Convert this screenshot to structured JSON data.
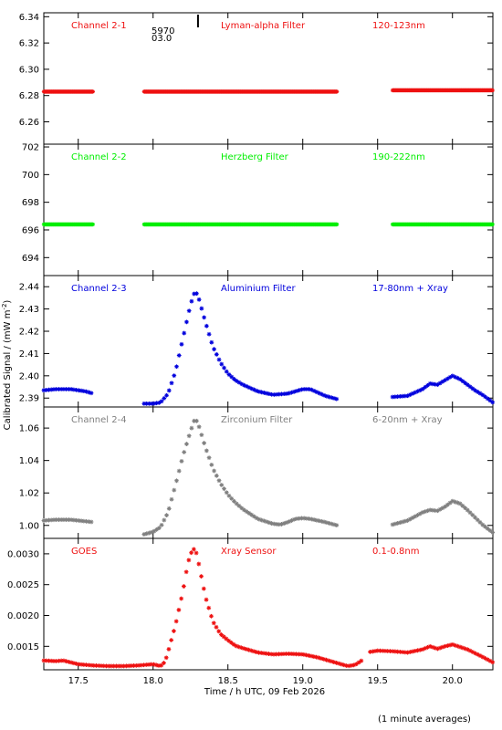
{
  "figure": {
    "ylabel_main": "Calibrated Signal / (mW m",
    "ylabel_exp": "-2",
    "ylabel_end": ")",
    "xlabel": "Time / h UTC, 09 Feb 2026",
    "footnote": "(1 minute averages)",
    "marker_label_1": "5970",
    "marker_label_2": "03.0"
  },
  "colors": {
    "red": "#ee1111",
    "green": "#00ee00",
    "blue": "#0000dd",
    "gray": "#808080",
    "axis": "#000000"
  },
  "chart_data": [
    {
      "type": "scatter",
      "labels": [
        "Channel 2-1",
        "Lyman-alpha Filter",
        "120-123nm"
      ],
      "color": "red",
      "ylim": [
        6.243,
        6.343
      ],
      "yticks": [
        6.26,
        6.28,
        6.3,
        6.32,
        6.34
      ],
      "ytick_labels": [
        "6.26",
        "6.28",
        "6.30",
        "6.32",
        "6.34"
      ],
      "xlim": [
        17.27,
        20.27
      ],
      "segments": [
        {
          "x": [
            17.27,
            17.6
          ],
          "y": [
            6.283,
            6.283
          ]
        },
        {
          "x": [
            17.94,
            19.23
          ],
          "y": [
            6.283,
            6.283
          ]
        },
        {
          "x": [
            19.6,
            20.27
          ],
          "y": [
            6.284,
            6.284
          ]
        }
      ]
    },
    {
      "type": "scatter",
      "labels": [
        "Channel 2-2",
        "Herzberg Filter",
        "190-222nm"
      ],
      "color": "green",
      "ylim": [
        692.7,
        702.2
      ],
      "yticks": [
        694,
        696,
        698,
        700,
        702
      ],
      "ytick_labels": [
        "694",
        "696",
        "698",
        "700",
        "702"
      ],
      "xlim": [
        17.27,
        20.27
      ],
      "segments": [
        {
          "x": [
            17.27,
            17.6
          ],
          "y": [
            696.4,
            696.4
          ]
        },
        {
          "x": [
            17.94,
            19.23
          ],
          "y": [
            696.4,
            696.4
          ]
        },
        {
          "x": [
            19.6,
            20.27
          ],
          "y": [
            696.4,
            696.4
          ]
        }
      ]
    },
    {
      "type": "scatter",
      "labels": [
        "Channel 2-3",
        "Aluminium Filter",
        "17-80nm + Xray"
      ],
      "color": "blue",
      "ylim": [
        2.386,
        2.445
      ],
      "yticks": [
        2.39,
        2.4,
        2.41,
        2.42,
        2.43,
        2.44
      ],
      "ytick_labels": [
        "2.39",
        "2.40",
        "2.41",
        "2.42",
        "2.43",
        "2.44"
      ],
      "xlim": [
        17.27,
        20.27
      ],
      "segments": [
        {
          "x": [
            17.27,
            17.35,
            17.45,
            17.55,
            17.6
          ],
          "y": [
            2.3935,
            2.394,
            2.394,
            2.393,
            2.392
          ]
        },
        {
          "x": [
            17.94,
            18.0,
            18.05,
            18.1,
            18.15,
            18.2,
            18.25,
            18.28,
            18.3,
            18.35,
            18.4,
            18.45,
            18.5,
            18.55,
            18.6,
            18.7,
            18.8,
            18.9,
            18.95,
            19.0,
            19.05,
            19.1,
            19.15,
            19.23
          ],
          "y": [
            2.3875,
            2.3875,
            2.388,
            2.392,
            2.402,
            2.417,
            2.432,
            2.438,
            2.436,
            2.424,
            2.413,
            2.406,
            2.401,
            2.398,
            2.396,
            2.393,
            2.3915,
            2.392,
            2.393,
            2.394,
            2.394,
            2.3925,
            2.391,
            2.3895
          ]
        },
        {
          "x": [
            19.6,
            19.7,
            19.75,
            19.8,
            19.85,
            19.9,
            19.95,
            20.0,
            20.05,
            20.1,
            20.15,
            20.2,
            20.27
          ],
          "y": [
            2.3905,
            2.391,
            2.3925,
            2.394,
            2.3965,
            2.396,
            2.398,
            2.4,
            2.3985,
            2.396,
            2.3935,
            2.3915,
            2.388
          ]
        }
      ]
    },
    {
      "type": "scatter",
      "labels": [
        "Channel 2-4",
        "Zirconium Filter",
        "6-20nm + Xray"
      ],
      "color": "gray",
      "ylim": [
        0.992,
        1.073
      ],
      "yticks": [
        1.0,
        1.02,
        1.04,
        1.06
      ],
      "ytick_labels": [
        "1.00",
        "1.02",
        "1.04",
        "1.06"
      ],
      "xlim": [
        17.27,
        20.27
      ],
      "segments": [
        {
          "x": [
            17.27,
            17.35,
            17.45,
            17.55,
            17.6
          ],
          "y": [
            1.003,
            1.0035,
            1.0035,
            1.0025,
            1.002
          ]
        },
        {
          "x": [
            17.94,
            18.0,
            18.05,
            18.1,
            18.15,
            18.2,
            18.25,
            18.28,
            18.3,
            18.35,
            18.4,
            18.45,
            18.5,
            18.55,
            18.6,
            18.7,
            18.8,
            18.85,
            18.9,
            18.95,
            19.0,
            19.05,
            19.1,
            19.15,
            19.23
          ],
          "y": [
            0.9945,
            0.996,
            0.999,
            1.008,
            1.025,
            1.043,
            1.058,
            1.066,
            1.063,
            1.048,
            1.035,
            1.026,
            1.019,
            1.014,
            1.01,
            1.004,
            1.001,
            1.0005,
            1.002,
            1.004,
            1.0045,
            1.004,
            1.003,
            1.002,
            1.0
          ]
        },
        {
          "x": [
            19.6,
            19.7,
            19.75,
            19.8,
            19.85,
            19.9,
            19.95,
            20.0,
            20.05,
            20.1,
            20.15,
            20.2,
            20.27
          ],
          "y": [
            1.0005,
            1.003,
            1.0055,
            1.008,
            1.0095,
            1.009,
            1.0115,
            1.015,
            1.0135,
            1.0095,
            1.005,
            1.0005,
            0.9955
          ]
        }
      ]
    },
    {
      "type": "scatter",
      "labels": [
        "GOES",
        "Xray Sensor",
        "0.1-0.8nm"
      ],
      "color": "red",
      "ylim": [
        0.00112,
        0.00325
      ],
      "yticks": [
        0.0015,
        0.002,
        0.0025,
        0.003
      ],
      "ytick_labels": [
        "0.0015",
        "0.0020",
        "0.0025",
        "0.0030"
      ],
      "xlim": [
        17.27,
        20.27
      ],
      "segments": [
        {
          "x": [
            17.27,
            17.35,
            17.4,
            17.45,
            17.5,
            17.6,
            17.7,
            17.8,
            17.9,
            18.0,
            18.05,
            18.08,
            18.1,
            18.15,
            18.2,
            18.23,
            18.25,
            18.28,
            18.3,
            18.35,
            18.4,
            18.45,
            18.5,
            18.55,
            18.6,
            18.7,
            18.8,
            18.9,
            19.0,
            19.1,
            19.2,
            19.3,
            19.35,
            19.4
          ],
          "y": [
            0.00127,
            0.00126,
            0.00127,
            0.00124,
            0.00121,
            0.00119,
            0.00118,
            0.00118,
            0.00119,
            0.00121,
            0.00118,
            0.00125,
            0.00141,
            0.00185,
            0.0024,
            0.00282,
            0.003,
            0.0031,
            0.0029,
            0.0023,
            0.0019,
            0.0017,
            0.0016,
            0.00151,
            0.00147,
            0.0014,
            0.00137,
            0.00138,
            0.00137,
            0.00132,
            0.00125,
            0.00118,
            0.0012,
            0.00128
          ]
        },
        {
          "x": [
            19.45,
            19.5,
            19.6,
            19.7,
            19.8,
            19.85,
            19.9,
            19.95,
            20.0,
            20.05,
            20.1,
            20.15,
            20.2,
            20.27
          ],
          "y": [
            0.00141,
            0.00143,
            0.00142,
            0.0014,
            0.00145,
            0.0015,
            0.00146,
            0.0015,
            0.00153,
            0.00149,
            0.00145,
            0.00139,
            0.00133,
            0.00124
          ]
        }
      ]
    }
  ],
  "xaxis": {
    "ticks": [
      17.5,
      18.0,
      18.5,
      19.0,
      19.5,
      20.0
    ],
    "tick_labels": [
      "17.5",
      "18.0",
      "18.5",
      "19.0",
      "19.5",
      "20.0"
    ],
    "event_marker_x": 18.3
  }
}
